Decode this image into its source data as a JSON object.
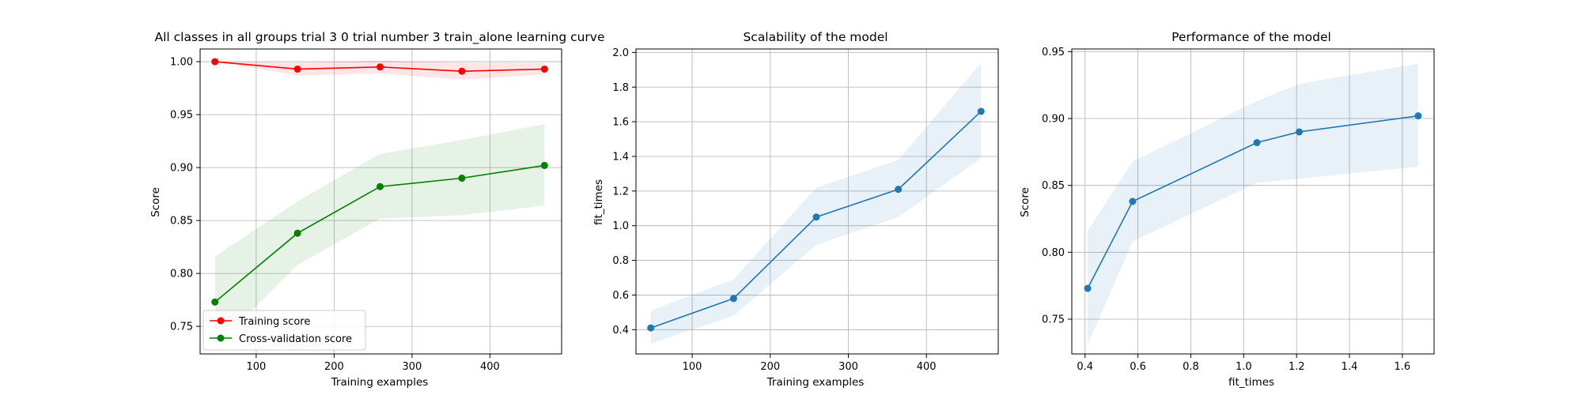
{
  "chart_data": [
    {
      "type": "line",
      "title": "All classes in all groups trial 3 0 trial number 3 train_alone learning curve",
      "xlabel": "Training examples",
      "ylabel": "Score",
      "xlim": [
        28,
        492
      ],
      "ylim": [
        0.724,
        1.012
      ],
      "xticks": [
        100,
        200,
        300,
        400
      ],
      "yticks": [
        0.75,
        0.8,
        0.85,
        0.9,
        0.95,
        1.0
      ],
      "ytick_labels": [
        "0.75",
        "0.80",
        "0.85",
        "0.90",
        "0.95",
        "1.00"
      ],
      "grid": true,
      "legend": "lower-left",
      "x": [
        47,
        153,
        259,
        364,
        470
      ],
      "series": [
        {
          "name": "Training score",
          "color": "#ff0000",
          "band_color": "#ff0000",
          "values": [
            1.0,
            0.993,
            0.995,
            0.991,
            0.993
          ],
          "lower": [
            1.0,
            0.987,
            0.989,
            0.983,
            0.988
          ],
          "upper": [
            1.0,
            0.999,
            1.001,
            0.999,
            0.999
          ]
        },
        {
          "name": "Cross-validation score",
          "color": "#008000",
          "band_color": "#008000",
          "values": [
            0.773,
            0.838,
            0.882,
            0.89,
            0.902
          ],
          "lower": [
            0.731,
            0.808,
            0.852,
            0.855,
            0.864
          ],
          "upper": [
            0.816,
            0.868,
            0.913,
            0.926,
            0.941
          ]
        }
      ]
    },
    {
      "type": "line",
      "title": "Scalability of the model",
      "xlabel": "Training examples",
      "ylabel": "fit_times",
      "xlim": [
        28,
        492
      ],
      "ylim": [
        0.26,
        2.02
      ],
      "xticks": [
        100,
        200,
        300,
        400
      ],
      "yticks": [
        0.4,
        0.6,
        0.8,
        1.0,
        1.2,
        1.4,
        1.6,
        1.8,
        2.0
      ],
      "ytick_labels": [
        "0.4",
        "0.6",
        "0.8",
        "1.0",
        "1.2",
        "1.4",
        "1.6",
        "1.8",
        "2.0"
      ],
      "grid": true,
      "x": [
        47,
        153,
        259,
        364,
        470
      ],
      "series": [
        {
          "color": "#1f77b4",
          "band_color": "#1f77b4",
          "values": [
            0.41,
            0.58,
            1.05,
            1.21,
            1.66
          ],
          "lower": [
            0.32,
            0.48,
            0.89,
            1.05,
            1.39
          ],
          "upper": [
            0.51,
            0.69,
            1.22,
            1.38,
            1.94
          ]
        }
      ]
    },
    {
      "type": "line",
      "title": "Performance of the model",
      "xlabel": "fit_times",
      "ylabel": "Score",
      "xlim": [
        0.35,
        1.72
      ],
      "ylim": [
        0.724,
        0.952
      ],
      "xticks": [
        0.4,
        0.6,
        0.8,
        1.0,
        1.2,
        1.4,
        1.6
      ],
      "xtick_labels": [
        "0.4",
        "0.6",
        "0.8",
        "1.0",
        "1.2",
        "1.4",
        "1.6"
      ],
      "yticks": [
        0.75,
        0.8,
        0.85,
        0.9,
        0.95
      ],
      "ytick_labels": [
        "0.75",
        "0.80",
        "0.85",
        "0.90",
        "0.95"
      ],
      "grid": true,
      "x": [
        0.41,
        0.58,
        1.05,
        1.21,
        1.66
      ],
      "series": [
        {
          "color": "#1f77b4",
          "band_color": "#1f77b4",
          "values": [
            0.773,
            0.838,
            0.882,
            0.89,
            0.902
          ],
          "lower": [
            0.731,
            0.808,
            0.852,
            0.855,
            0.864
          ],
          "upper": [
            0.816,
            0.868,
            0.913,
            0.926,
            0.941
          ]
        }
      ]
    }
  ]
}
